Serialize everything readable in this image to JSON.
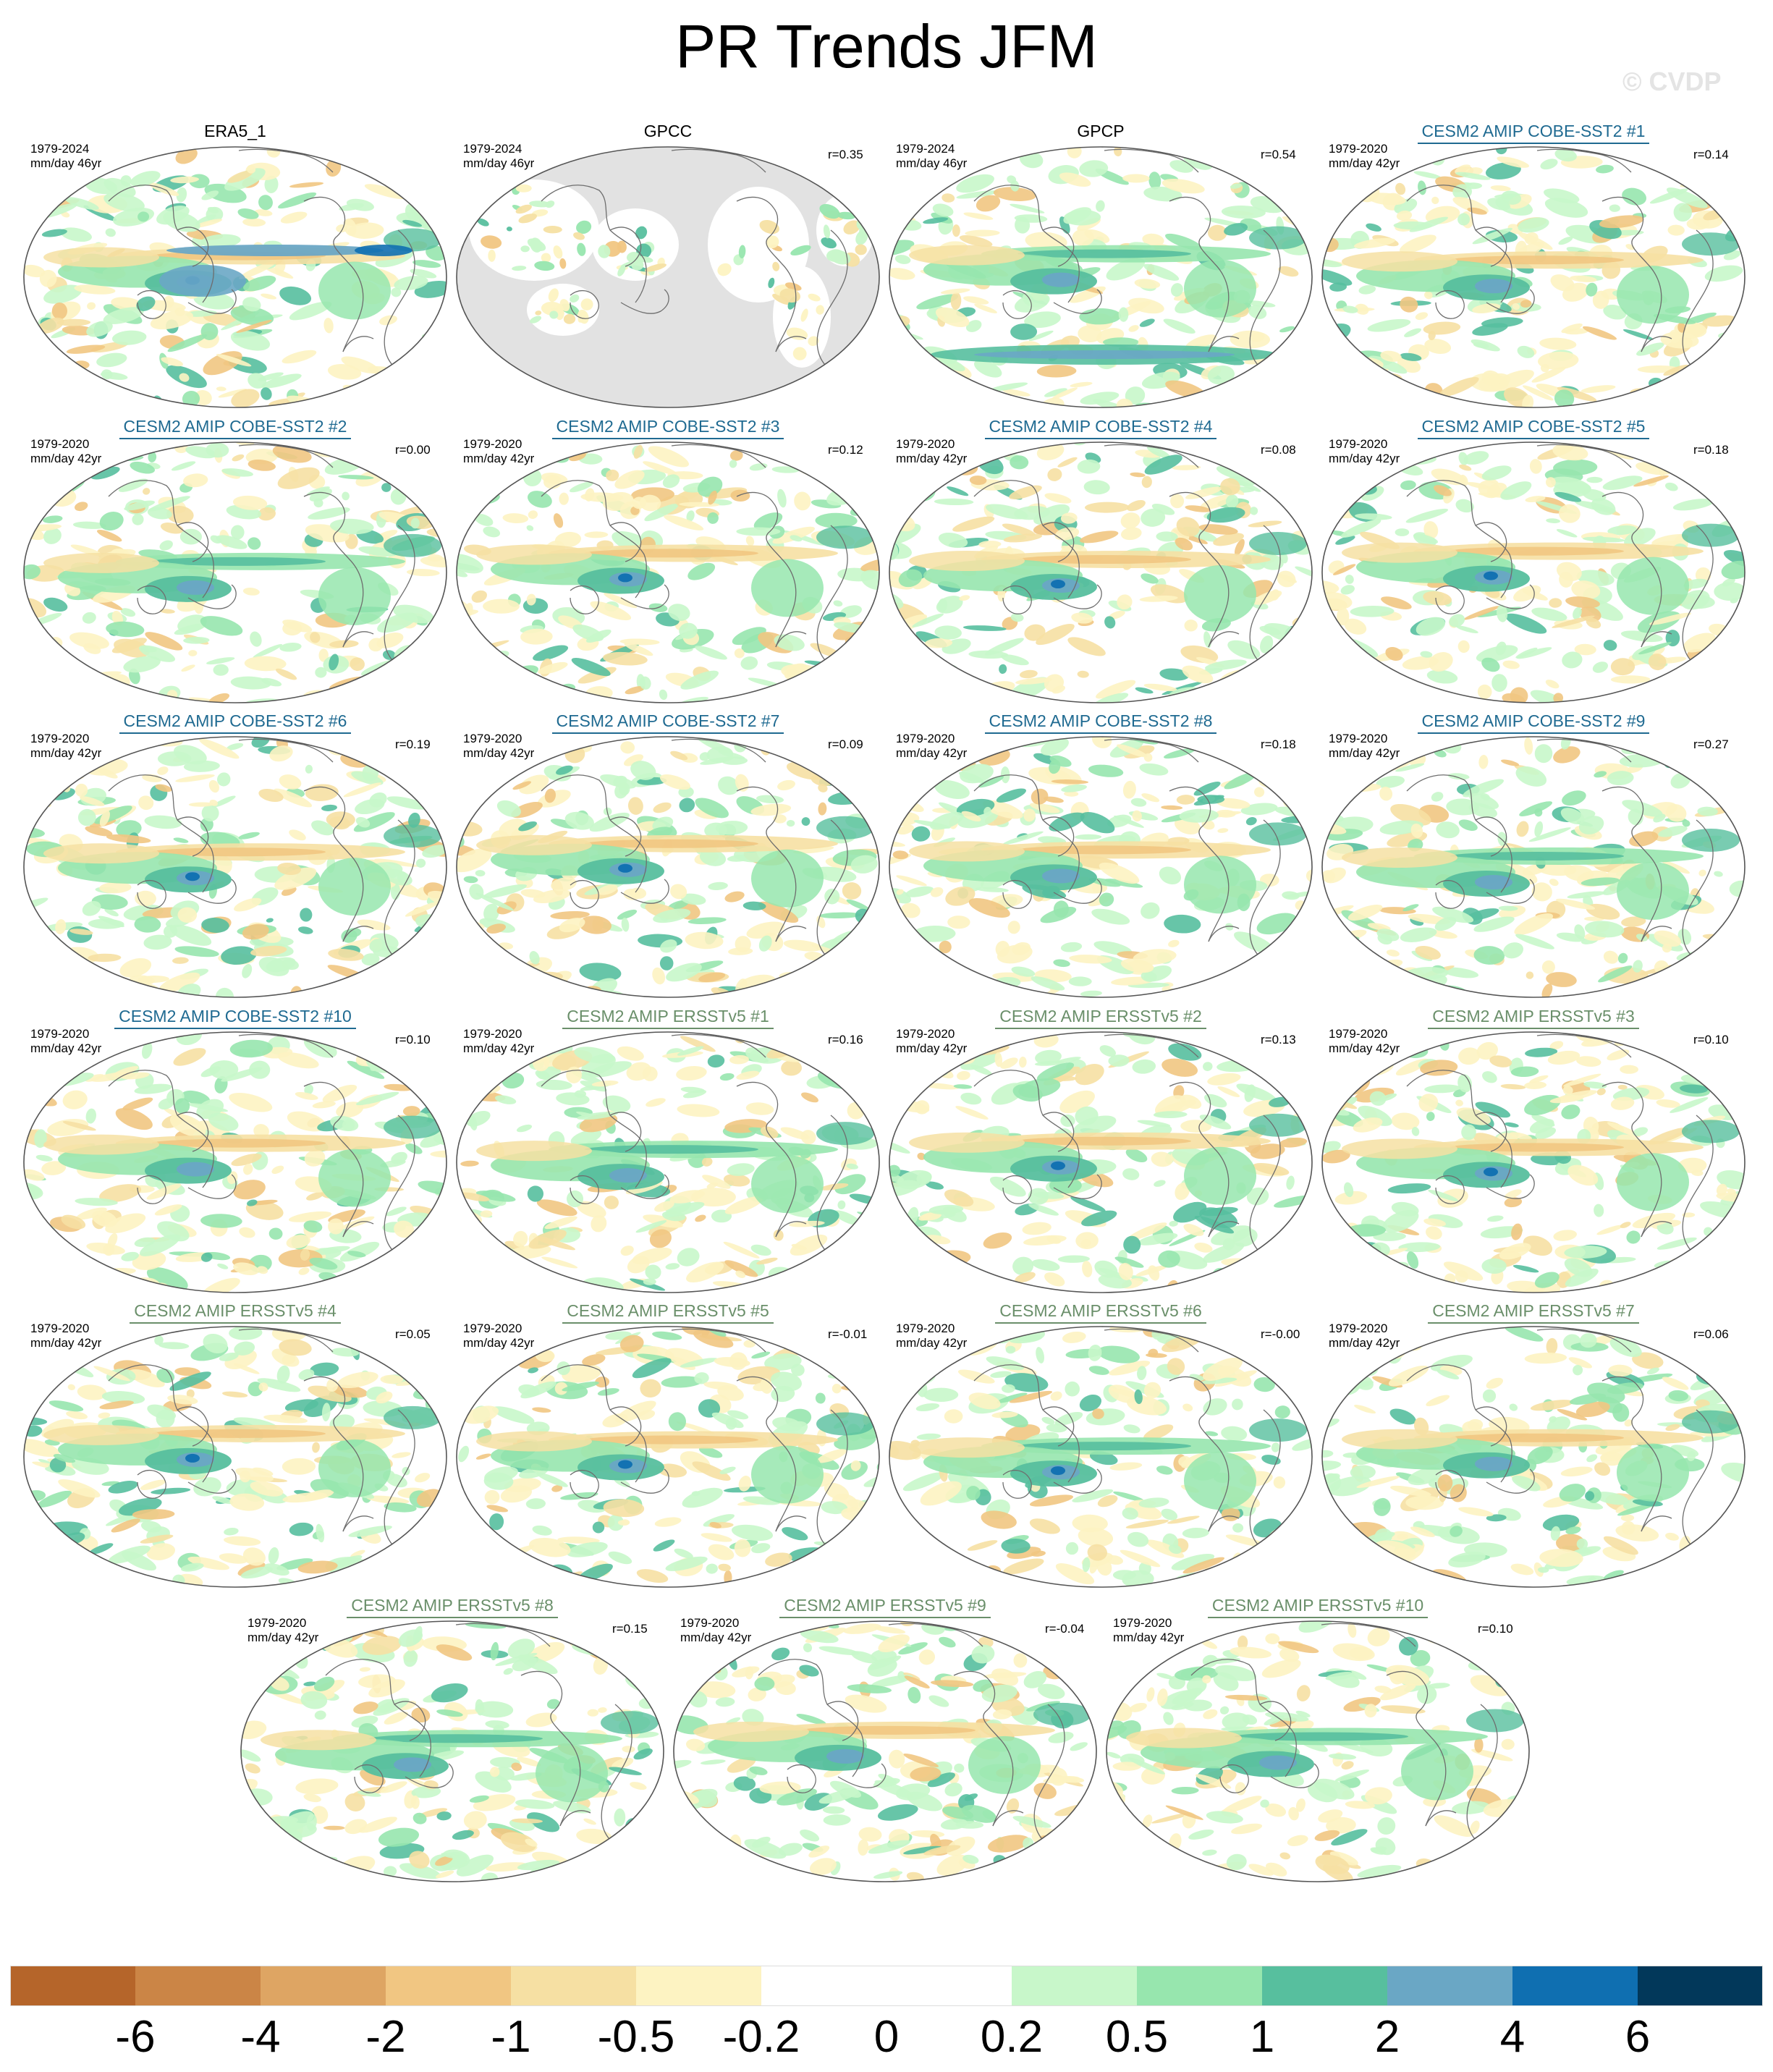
{
  "figure": {
    "title": "PR Trends JFM",
    "watermark": "© CVDP"
  },
  "colors": {
    "obs_title": "#000000",
    "cobe_title": "#1f6a91",
    "ersst_title": "#6a8f6a",
    "land_mask": "#e2e2e2",
    "coast": "#6e6e6e"
  },
  "panels": [
    {
      "title": "ERA5_1",
      "years": "1979-2024",
      "units": "mm/day 46yr",
      "r": "",
      "group": "obs",
      "underline": false
    },
    {
      "title": "GPCC",
      "years": "1979-2024",
      "units": "mm/day 46yr",
      "r": "r=0.35",
      "group": "gpcc",
      "underline": false
    },
    {
      "title": "GPCP",
      "years": "1979-2024",
      "units": "mm/day 46yr",
      "r": "r=0.54",
      "group": "obs",
      "underline": false
    },
    {
      "title": "CESM2 AMIP COBE-SST2 #1",
      "years": "1979-2020",
      "units": "mm/day 42yr",
      "r": "r=0.14",
      "group": "cobe",
      "underline": true
    },
    {
      "title": "CESM2 AMIP COBE-SST2 #2",
      "years": "1979-2020",
      "units": "mm/day 42yr",
      "r": "r=0.00",
      "group": "cobe",
      "underline": true
    },
    {
      "title": "CESM2 AMIP COBE-SST2 #3",
      "years": "1979-2020",
      "units": "mm/day 42yr",
      "r": "r=0.12",
      "group": "cobe",
      "underline": true
    },
    {
      "title": "CESM2 AMIP COBE-SST2 #4",
      "years": "1979-2020",
      "units": "mm/day 42yr",
      "r": "r=0.08",
      "group": "cobe",
      "underline": true
    },
    {
      "title": "CESM2 AMIP COBE-SST2 #5",
      "years": "1979-2020",
      "units": "mm/day 42yr",
      "r": "r=0.18",
      "group": "cobe",
      "underline": true
    },
    {
      "title": "CESM2 AMIP COBE-SST2 #6",
      "years": "1979-2020",
      "units": "mm/day 42yr",
      "r": "r=0.19",
      "group": "cobe",
      "underline": true
    },
    {
      "title": "CESM2 AMIP COBE-SST2 #7",
      "years": "1979-2020",
      "units": "mm/day 42yr",
      "r": "r=0.09",
      "group": "cobe",
      "underline": true
    },
    {
      "title": "CESM2 AMIP COBE-SST2 #8",
      "years": "1979-2020",
      "units": "mm/day 42yr",
      "r": "r=0.18",
      "group": "cobe",
      "underline": true
    },
    {
      "title": "CESM2 AMIP COBE-SST2 #9",
      "years": "1979-2020",
      "units": "mm/day 42yr",
      "r": "r=0.27",
      "group": "cobe",
      "underline": true
    },
    {
      "title": "CESM2 AMIP COBE-SST2 #10",
      "years": "1979-2020",
      "units": "mm/day 42yr",
      "r": "r=0.10",
      "group": "cobe",
      "underline": true
    },
    {
      "title": "CESM2 AMIP ERSSTv5 #1",
      "years": "1979-2020",
      "units": "mm/day 42yr",
      "r": "r=0.16",
      "group": "ersst",
      "underline": true
    },
    {
      "title": "CESM2 AMIP ERSSTv5 #2",
      "years": "1979-2020",
      "units": "mm/day 42yr",
      "r": "r=0.13",
      "group": "ersst",
      "underline": true
    },
    {
      "title": "CESM2 AMIP ERSSTv5 #3",
      "years": "1979-2020",
      "units": "mm/day 42yr",
      "r": "r=0.10",
      "group": "ersst",
      "underline": true
    },
    {
      "title": "CESM2 AMIP ERSSTv5 #4",
      "years": "1979-2020",
      "units": "mm/day 42yr",
      "r": "r=0.05",
      "group": "ersst",
      "underline": true
    },
    {
      "title": "CESM2 AMIP ERSSTv5 #5",
      "years": "1979-2020",
      "units": "mm/day 42yr",
      "r": "r=-0.01",
      "group": "ersst",
      "underline": true
    },
    {
      "title": "CESM2 AMIP ERSSTv5 #6",
      "years": "1979-2020",
      "units": "mm/day 42yr",
      "r": "r=-0.00",
      "group": "ersst",
      "underline": true
    },
    {
      "title": "CESM2 AMIP ERSSTv5 #7",
      "years": "1979-2020",
      "units": "mm/day 42yr",
      "r": "r=0.06",
      "group": "ersst",
      "underline": true
    },
    {
      "title": "CESM2 AMIP ERSSTv5 #8",
      "years": "1979-2020",
      "units": "mm/day 42yr",
      "r": "r=0.15",
      "group": "ersst",
      "underline": true
    },
    {
      "title": "CESM2 AMIP ERSSTv5 #9",
      "years": "1979-2020",
      "units": "mm/day 42yr",
      "r": "r=-0.04",
      "group": "ersst",
      "underline": true
    },
    {
      "title": "CESM2 AMIP ERSSTv5 #10",
      "years": "1979-2020",
      "units": "mm/day 42yr",
      "r": "r=0.10",
      "group": "ersst",
      "underline": true
    }
  ],
  "colorbar": {
    "colors": [
      "#b5652a",
      "#cb8546",
      "#dea563",
      "#f1c682",
      "#f6e0a3",
      "#fdf3c2",
      "#ffffff",
      "#ffffff",
      "#c8f7ca",
      "#97e6ae",
      "#57bf9e",
      "#6aa7c5",
      "#0f6fb1",
      "#02385a"
    ],
    "labels": [
      "-6",
      "-4",
      "-2",
      "-1",
      "-0.5",
      "-0.2",
      "0",
      "0.2",
      "0.5",
      "1",
      "2",
      "4",
      "6"
    ]
  }
}
